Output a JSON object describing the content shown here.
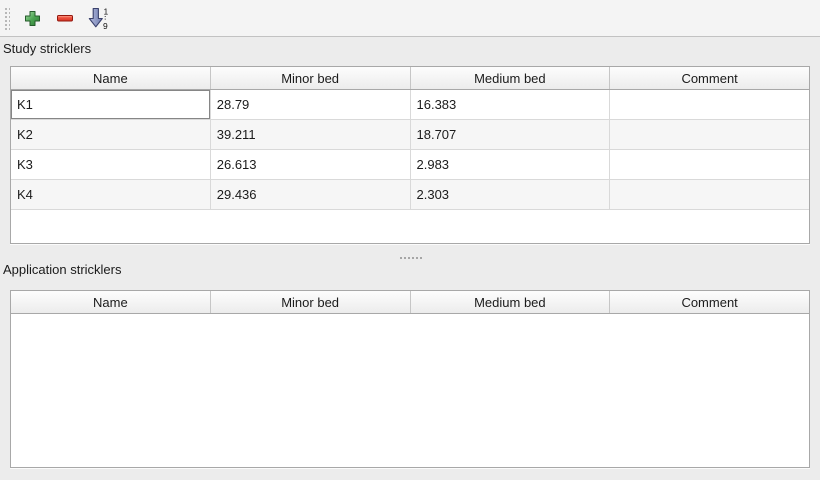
{
  "toolbar": {
    "add_button": {
      "icon": "plus-icon"
    },
    "remove_button": {
      "icon": "minus-icon"
    },
    "sort_button": {
      "icon": "sort-ascending-icon",
      "top_char": "1",
      "bottom_char": "9"
    }
  },
  "study_section": {
    "title": "Study stricklers",
    "table": {
      "columns": [
        "Name",
        "Minor bed",
        "Medium bed",
        "Comment"
      ],
      "rows": [
        [
          "K1",
          "28.79",
          "16.383",
          ""
        ],
        [
          "K2",
          "39.211",
          "18.707",
          ""
        ],
        [
          "K3",
          "26.613",
          "2.983",
          ""
        ],
        [
          "K4",
          "29.436",
          "2.303",
          ""
        ]
      ]
    }
  },
  "application_section": {
    "title": "Application stricklers",
    "table": {
      "columns": [
        "Name",
        "Minor bed",
        "Medium bed",
        "Comment"
      ],
      "rows": []
    }
  },
  "colors": {
    "add_green": "#3f9a46",
    "remove_red": "#e2392a",
    "sort_arrow_blue": "#8a94c0",
    "window_bg": "#ececec",
    "row_alt_bg": "#f6f6f6",
    "focus_outline": "#868686"
  }
}
